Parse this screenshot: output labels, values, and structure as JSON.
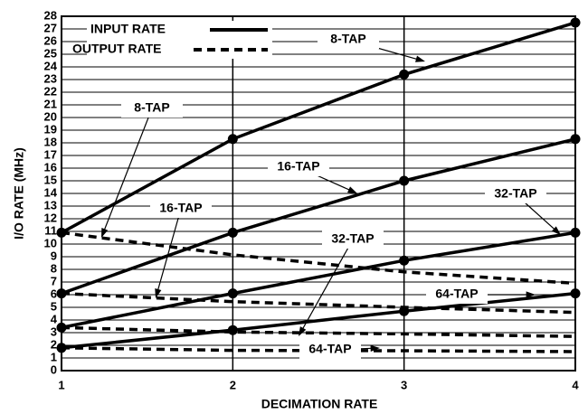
{
  "chart_data": {
    "type": "line",
    "x_label": "DECIMATION RATE",
    "y_label": "I/O RATE (MHz)",
    "x": [
      1,
      2,
      3,
      4
    ],
    "xlim": [
      1,
      4
    ],
    "xticks": [
      1,
      2,
      3,
      4
    ],
    "ylim": [
      0,
      28
    ],
    "yticks": [
      0,
      1,
      2,
      3,
      4,
      5,
      6,
      7,
      8,
      9,
      10,
      11,
      12,
      13,
      14,
      15,
      16,
      17,
      18,
      19,
      20,
      21,
      22,
      23,
      24,
      25,
      26,
      27,
      28
    ],
    "grid": true,
    "color": "#000000",
    "legend": {
      "input": "INPUT RATE",
      "output": "OUTPUT RATE"
    },
    "series_input": [
      {
        "name": "8-TAP",
        "values": [
          10.9,
          18.3,
          23.4,
          27.5
        ]
      },
      {
        "name": "16-TAP",
        "values": [
          6.1,
          10.9,
          15.0,
          18.3
        ]
      },
      {
        "name": "32-TAP",
        "values": [
          3.4,
          6.1,
          8.7,
          10.9
        ]
      },
      {
        "name": "64-TAP",
        "values": [
          1.8,
          3.2,
          4.7,
          6.1
        ]
      }
    ],
    "series_output": [
      {
        "name": "8-TAP",
        "values": [
          10.9,
          9.15,
          7.8,
          6.9
        ]
      },
      {
        "name": "16-TAP",
        "values": [
          6.1,
          5.45,
          5.0,
          4.6
        ]
      },
      {
        "name": "32-TAP",
        "values": [
          3.4,
          3.05,
          2.9,
          2.7
        ]
      },
      {
        "name": "64-TAP",
        "values": [
          1.8,
          1.6,
          1.57,
          1.5
        ]
      }
    ]
  }
}
